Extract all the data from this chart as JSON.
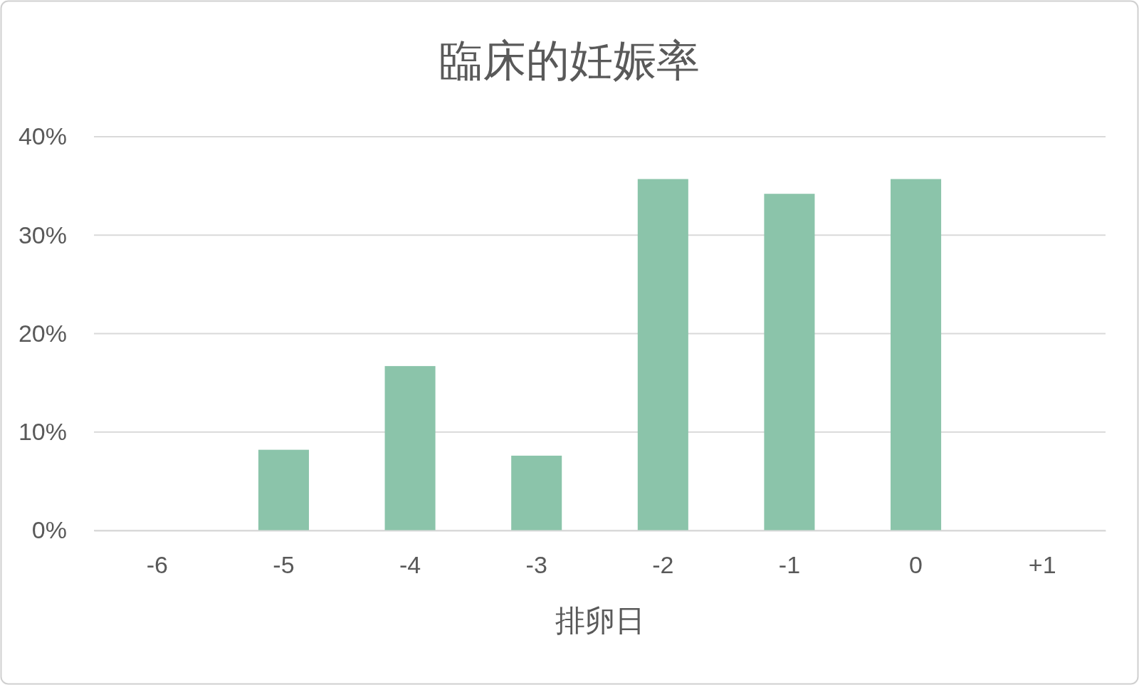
{
  "chart_data": {
    "type": "bar",
    "title": "臨床的妊娠率",
    "xlabel": "排卵日",
    "categories": [
      "-6",
      "-5",
      "-4",
      "-3",
      "-2",
      "-1",
      "0",
      "+1"
    ],
    "values": [
      0,
      8.2,
      16.7,
      7.6,
      35.7,
      34.2,
      35.7,
      0
    ],
    "color": "#8bc4aa",
    "ylim": [
      0,
      40
    ],
    "yticks": [
      {
        "value": 0,
        "label": "0%"
      },
      {
        "value": 10,
        "label": "10%"
      },
      {
        "value": 20,
        "label": "20%"
      },
      {
        "value": 30,
        "label": "30%"
      },
      {
        "value": 40,
        "label": "40%"
      }
    ],
    "grid": "y"
  }
}
